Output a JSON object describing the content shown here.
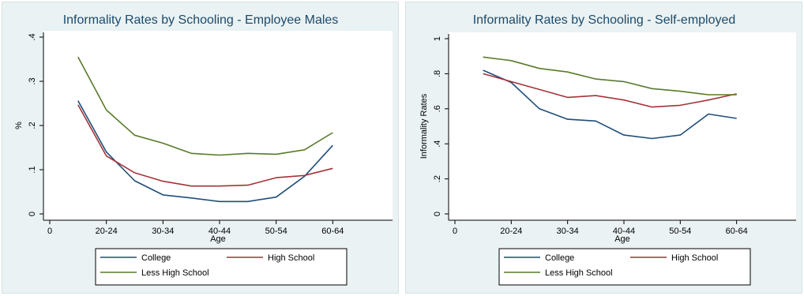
{
  "chart_data": [
    {
      "type": "line",
      "title": "Informality Rates by Schooling - Employee Males",
      "xlabel": "Age",
      "ylabel": "%",
      "xlim": [
        0,
        12
      ],
      "ylim": [
        0,
        0.4
      ],
      "x_ticks": [
        {
          "x": 0,
          "label": "0"
        },
        {
          "x": 2,
          "label": "20-24"
        },
        {
          "x": 4,
          "label": "30-34"
        },
        {
          "x": 6,
          "label": "40-44"
        },
        {
          "x": 8,
          "label": "50-54"
        },
        {
          "x": 10,
          "label": "60-64"
        }
      ],
      "y_ticks": [
        {
          "y": 0,
          "label": "0"
        },
        {
          "y": 0.1,
          "label": ".1"
        },
        {
          "y": 0.2,
          "label": ".2"
        },
        {
          "y": 0.3,
          "label": ".3"
        },
        {
          "y": 0.4,
          "label": ".4"
        }
      ],
      "x": [
        1,
        2,
        3,
        4,
        5,
        6,
        7,
        8,
        9,
        10
      ],
      "series": [
        {
          "name": "College",
          "color": "#1f4e79",
          "values": [
            0.256,
            0.14,
            0.075,
            0.043,
            0.036,
            0.028,
            0.028,
            0.038,
            0.085,
            0.155
          ]
        },
        {
          "name": "High School",
          "color": "#a3343a",
          "values": [
            0.247,
            0.131,
            0.093,
            0.074,
            0.063,
            0.063,
            0.065,
            0.082,
            0.087,
            0.103
          ]
        },
        {
          "name": "Less High School",
          "color": "#5a7a2a",
          "values": [
            0.355,
            0.235,
            0.178,
            0.16,
            0.137,
            0.133,
            0.137,
            0.135,
            0.145,
            0.184
          ]
        }
      ],
      "legend": "bottom",
      "grid": false
    },
    {
      "type": "line",
      "title": "Informality Rates by Schooling - Self-employed",
      "xlabel": "Age",
      "ylabel": "Informality Rates",
      "xlim": [
        0,
        12
      ],
      "ylim": [
        0,
        1
      ],
      "x_ticks": [
        {
          "x": 0,
          "label": "0"
        },
        {
          "x": 2,
          "label": "20-24"
        },
        {
          "x": 4,
          "label": "30-34"
        },
        {
          "x": 6,
          "label": "40-44"
        },
        {
          "x": 8,
          "label": "50-54"
        },
        {
          "x": 10,
          "label": "60-64"
        }
      ],
      "y_ticks": [
        {
          "y": 0,
          "label": "0"
        },
        {
          "y": 0.2,
          "label": ".2"
        },
        {
          "y": 0.4,
          "label": ".4"
        },
        {
          "y": 0.6,
          "label": ".6"
        },
        {
          "y": 0.8,
          "label": ".8"
        },
        {
          "y": 1,
          "label": "1"
        }
      ],
      "x": [
        1,
        2,
        3,
        4,
        5,
        6,
        7,
        8,
        9,
        10
      ],
      "series": [
        {
          "name": "College",
          "color": "#1f4e79",
          "values": [
            0.82,
            0.75,
            0.6,
            0.54,
            0.53,
            0.45,
            0.43,
            0.45,
            0.57,
            0.545
          ]
        },
        {
          "name": "High School",
          "color": "#a3343a",
          "values": [
            0.8,
            0.755,
            0.71,
            0.665,
            0.675,
            0.65,
            0.61,
            0.62,
            0.65,
            0.685
          ]
        },
        {
          "name": "Less High School",
          "color": "#5a7a2a",
          "values": [
            0.895,
            0.875,
            0.83,
            0.81,
            0.77,
            0.755,
            0.715,
            0.7,
            0.68,
            0.68
          ]
        }
      ],
      "legend": "bottom",
      "grid": false
    }
  ]
}
